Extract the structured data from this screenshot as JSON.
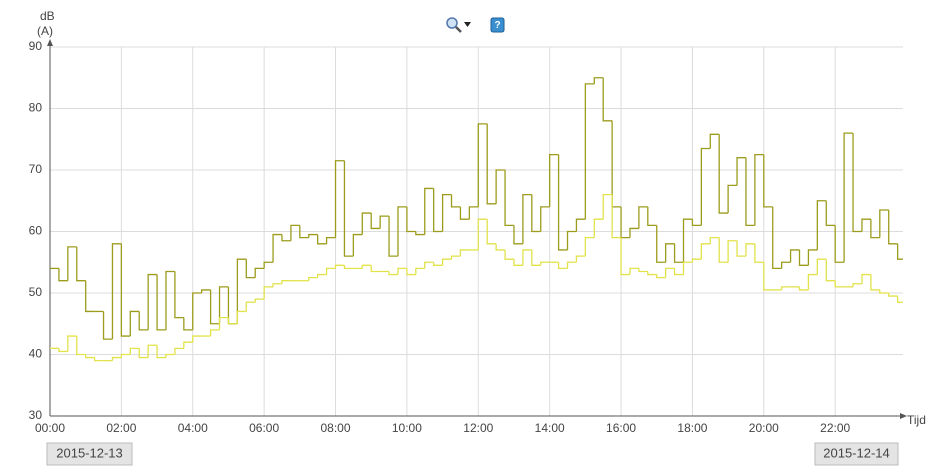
{
  "chart_data": {
    "type": "step",
    "y_label": [
      "dB",
      "(A)"
    ],
    "x_label": "Tijd",
    "start_date": "2015-12-13",
    "end_date": "2015-12-14",
    "x": [
      0,
      0.25,
      0.5,
      0.75,
      1,
      1.25,
      1.5,
      1.75,
      2,
      2.25,
      2.5,
      2.75,
      3,
      3.25,
      3.5,
      3.75,
      4,
      4.25,
      4.5,
      4.75,
      5,
      5.25,
      5.5,
      5.75,
      6,
      6.25,
      6.5,
      6.75,
      7,
      7.25,
      7.5,
      7.75,
      8,
      8.25,
      8.5,
      8.75,
      9,
      9.25,
      9.5,
      9.75,
      10,
      10.25,
      10.5,
      10.75,
      11,
      11.25,
      11.5,
      11.75,
      12,
      12.25,
      12.5,
      12.75,
      13,
      13.25,
      13.5,
      13.75,
      14,
      14.25,
      14.5,
      14.75,
      15,
      15.25,
      15.5,
      15.75,
      16,
      16.25,
      16.5,
      16.75,
      17,
      17.25,
      17.5,
      17.75,
      18,
      18.25,
      18.5,
      18.75,
      19,
      19.25,
      19.5,
      19.75,
      20,
      20.25,
      20.5,
      20.75,
      21,
      21.25,
      21.5,
      21.75,
      22,
      22.25,
      22.5,
      22.75,
      23,
      23.25,
      23.5,
      23.75
    ],
    "series": [
      {
        "color": "#9c9c1c",
        "values": [
          54,
          52,
          57.5,
          52,
          47,
          47,
          42.5,
          58,
          43,
          47,
          44,
          53,
          44,
          53.5,
          46,
          44,
          50,
          50.5,
          45,
          51,
          45,
          55.5,
          52.5,
          54,
          55,
          59.5,
          58.5,
          61,
          59,
          59.5,
          58,
          59,
          71.5,
          56,
          59.5,
          63,
          60.5,
          62.5,
          56,
          64,
          60,
          59.5,
          67,
          60,
          66,
          64,
          62,
          64,
          77.5,
          64.5,
          70,
          61,
          58,
          66,
          60,
          64,
          72.5,
          57,
          60,
          62,
          84,
          85,
          78,
          64,
          59,
          60.5,
          64,
          61,
          55,
          58,
          55,
          62,
          61,
          73.5,
          75.8,
          63,
          67.5,
          72,
          61,
          72.5,
          64,
          54,
          55,
          57,
          54.5,
          57,
          65,
          61,
          55,
          76,
          60,
          62,
          59,
          63.5,
          58,
          55.5
        ]
      },
      {
        "color": "#e2e24a",
        "values": [
          41,
          40.5,
          43,
          40,
          39.5,
          39,
          39,
          39.5,
          40,
          41,
          39.5,
          41.5,
          39.5,
          40,
          41,
          42,
          43,
          43,
          44,
          46,
          45,
          47,
          48.5,
          49,
          51,
          51.5,
          52,
          52,
          52,
          52.5,
          53,
          54,
          54.5,
          54,
          54,
          54.5,
          53.5,
          53.5,
          53,
          54,
          53,
          54,
          55,
          54.5,
          55.5,
          56,
          57,
          57,
          62,
          58,
          57,
          55.5,
          54.5,
          57,
          54.5,
          55,
          55,
          54,
          55,
          56,
          59,
          62,
          66,
          59,
          53,
          54,
          53.5,
          53,
          52.5,
          54,
          53,
          55,
          55.5,
          58,
          59,
          55,
          58.5,
          56,
          58,
          55,
          50.5,
          50.5,
          51,
          51,
          50.5,
          53,
          55.5,
          52,
          51,
          51,
          51.5,
          53,
          50.5,
          50,
          49.5,
          48.5
        ]
      }
    ],
    "xlim": [
      0,
      23.9
    ],
    "xticks": [
      {
        "value": 0,
        "label": "00:00"
      },
      {
        "value": 2,
        "label": "02:00"
      },
      {
        "value": 4,
        "label": "04:00"
      },
      {
        "value": 6,
        "label": "06:00"
      },
      {
        "value": 8,
        "label": "08:00"
      },
      {
        "value": 10,
        "label": "10:00"
      },
      {
        "value": 12,
        "label": "12:00"
      },
      {
        "value": 14,
        "label": "14:00"
      },
      {
        "value": 16,
        "label": "16:00"
      },
      {
        "value": 18,
        "label": "18:00"
      },
      {
        "value": 20,
        "label": "20:00"
      },
      {
        "value": 22,
        "label": "22:00"
      }
    ],
    "ylim": [
      30,
      90
    ],
    "yticks": [
      30,
      40,
      50,
      60,
      70,
      80,
      90
    ],
    "grid": true
  }
}
